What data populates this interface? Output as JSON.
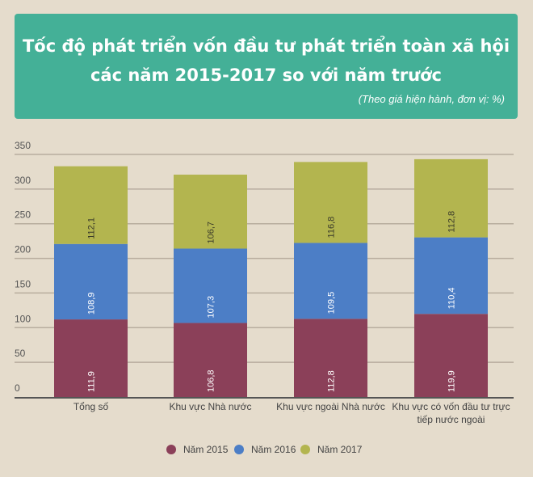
{
  "chart_data": {
    "type": "bar",
    "stacked": true,
    "title": "Tốc độ phát triển vốn đầu tư phát triển toàn xã hội các năm 2015-2017 so với năm trước",
    "title_lines": [
      "Tốc độ phát triển vốn đầu tư phát triển toàn xã hội",
      "các năm 2015-2017 so với năm trước"
    ],
    "subtitle": "(Theo giá hiện hành, đơn vị: %)",
    "categories": [
      "Tổng số",
      "Khu vực Nhà nước",
      "Khu vực ngoài Nhà nước",
      "Khu vực có vốn đầu tư trực tiếp nước ngoài"
    ],
    "category_lines": [
      [
        "Tổng số"
      ],
      [
        "Khu vực Nhà nước"
      ],
      [
        "Khu vực ngoài Nhà nước"
      ],
      [
        "Khu vực có vốn đầu tư trực",
        "tiếp nước ngoài"
      ]
    ],
    "series": [
      {
        "name": "Năm 2015",
        "color": "#8b4059",
        "values": [
          111.9,
          106.8,
          112.8,
          119.9
        ],
        "labels": [
          "111,9",
          "106,8",
          "112,8",
          "119,9"
        ]
      },
      {
        "name": "Năm 2016",
        "color": "#4c7ec6",
        "values": [
          108.9,
          107.3,
          109.5,
          110.4
        ],
        "labels": [
          "108,9",
          "107,3",
          "109,5",
          "110,4"
        ]
      },
      {
        "name": "Năm 2017",
        "color": "#b3b54f",
        "values": [
          112.1,
          106.7,
          116.8,
          112.8
        ],
        "labels": [
          "112,1",
          "106,7",
          "116,8",
          "112,8"
        ]
      }
    ],
    "ylim": [
      0,
      350
    ],
    "yticks": [
      0,
      50,
      100,
      150,
      200,
      250,
      300,
      350
    ],
    "grid": true,
    "legend": "bottom"
  }
}
